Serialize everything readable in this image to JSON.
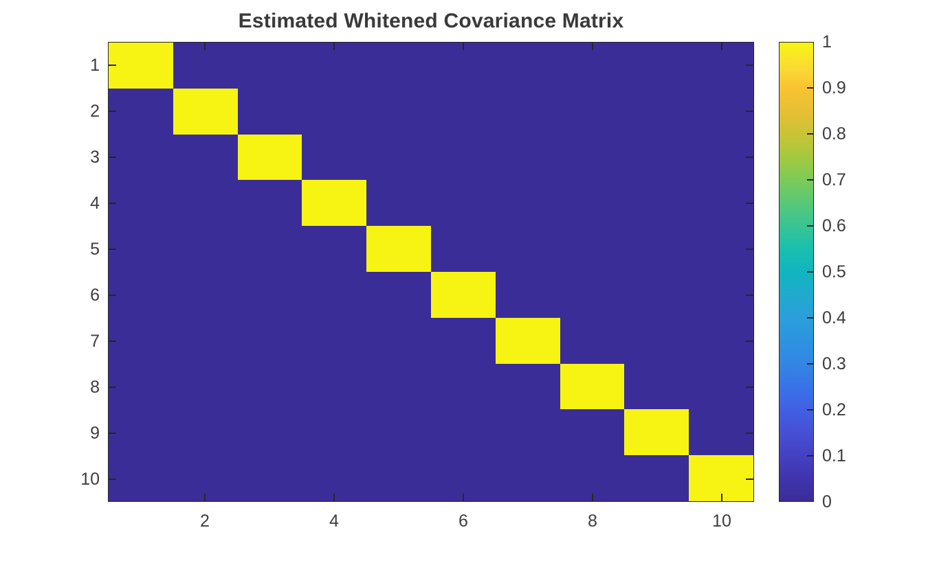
{
  "figure": {
    "title": "Estimated Whitened Covariance Matrix"
  },
  "chart_data": {
    "type": "heatmap",
    "title": "Estimated Whitened Covariance Matrix",
    "x_categories": [
      1,
      2,
      3,
      4,
      5,
      6,
      7,
      8,
      9,
      10
    ],
    "y_categories": [
      1,
      2,
      3,
      4,
      5,
      6,
      7,
      8,
      9,
      10
    ],
    "matrix": [
      [
        1,
        0,
        0,
        0,
        0,
        0,
        0,
        0,
        0,
        0
      ],
      [
        0,
        1,
        0,
        0,
        0,
        0,
        0,
        0,
        0,
        0
      ],
      [
        0,
        0,
        1,
        0,
        0,
        0,
        0,
        0,
        0,
        0
      ],
      [
        0,
        0,
        0,
        1,
        0,
        0,
        0,
        0,
        0,
        0
      ],
      [
        0,
        0,
        0,
        0,
        1,
        0,
        0,
        0,
        0,
        0
      ],
      [
        0,
        0,
        0,
        0,
        0,
        1,
        0,
        0,
        0,
        0
      ],
      [
        0,
        0,
        0,
        0,
        0,
        0,
        1,
        0,
        0,
        0
      ],
      [
        0,
        0,
        0,
        0,
        0,
        0,
        0,
        1,
        0,
        0
      ],
      [
        0,
        0,
        0,
        0,
        0,
        0,
        0,
        0,
        1,
        0
      ],
      [
        0,
        0,
        0,
        0,
        0,
        0,
        0,
        0,
        0,
        1
      ]
    ],
    "clim": [
      0,
      1
    ],
    "colormap": "parula",
    "x_tick_values": [
      2,
      4,
      6,
      8,
      10
    ],
    "x_tick_labels": [
      "2",
      "4",
      "6",
      "8",
      "10"
    ],
    "y_tick_values": [
      1,
      2,
      3,
      4,
      5,
      6,
      7,
      8,
      9,
      10
    ],
    "y_tick_labels": [
      "1",
      "2",
      "3",
      "4",
      "5",
      "6",
      "7",
      "8",
      "9",
      "10"
    ],
    "grid": false,
    "colorbar": {
      "position": "right",
      "range": [
        0,
        1
      ],
      "tick_values": [
        0,
        0.1,
        0.2,
        0.3,
        0.4,
        0.5,
        0.6,
        0.7,
        0.8,
        0.9,
        1
      ],
      "tick_labels": [
        "0",
        "0.1",
        "0.2",
        "0.3",
        "0.4",
        "0.5",
        "0.6",
        "0.7",
        "0.8",
        "0.9",
        "1"
      ]
    }
  },
  "colors": {
    "background": "#FFFFFF",
    "min_color": "#3B2D97",
    "max_color": "#F7F414",
    "axis_color": "#262626",
    "label_color": "#3D3D3D",
    "parula_stops": [
      [
        0.0,
        "#3B2D97"
      ],
      [
        0.05,
        "#4134AE"
      ],
      [
        0.1,
        "#4441C2"
      ],
      [
        0.15,
        "#4650D5"
      ],
      [
        0.2,
        "#4160E4"
      ],
      [
        0.25,
        "#3873E8"
      ],
      [
        0.3,
        "#3386E3"
      ],
      [
        0.35,
        "#2D93E0"
      ],
      [
        0.4,
        "#2B9FDB"
      ],
      [
        0.45,
        "#1FAACD"
      ],
      [
        0.5,
        "#12B5C1"
      ],
      [
        0.55,
        "#1ABFAD"
      ],
      [
        0.6,
        "#39C493"
      ],
      [
        0.65,
        "#57C877"
      ],
      [
        0.7,
        "#7CCB58"
      ],
      [
        0.75,
        "#A3C93F"
      ],
      [
        0.8,
        "#C9C336"
      ],
      [
        0.85,
        "#E7BF34"
      ],
      [
        0.9,
        "#F9C231"
      ],
      [
        0.94,
        "#FBD835"
      ],
      [
        1.0,
        "#F7F414"
      ]
    ]
  }
}
